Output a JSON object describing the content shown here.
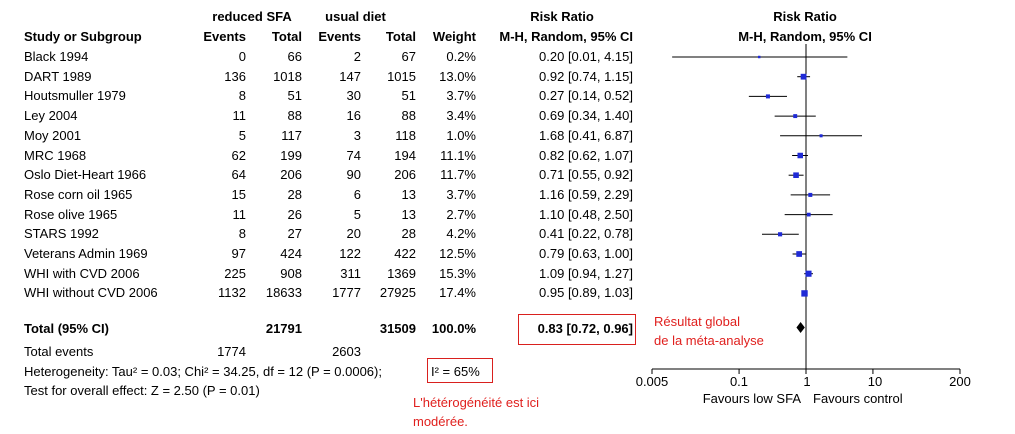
{
  "header": {
    "group1": "reduced SFA",
    "group2": "usual diet",
    "rr_title": "Risk Ratio",
    "plot_title": "Risk Ratio",
    "col_study": "Study or Subgroup",
    "col_events1": "Events",
    "col_total1": "Total",
    "col_events2": "Events",
    "col_total2": "Total",
    "col_weight": "Weight",
    "col_rr": "M-H, Random, 95% CI",
    "col_plot": "M-H, Random, 95% CI"
  },
  "studies": [
    {
      "name": "Black 1994",
      "e1": "0",
      "t1": "66",
      "e2": "2",
      "t2": "67",
      "weight": "0.2%",
      "ci_text": "0.20 [0.01, 4.15]"
    },
    {
      "name": "DART 1989",
      "e1": "136",
      "t1": "1018",
      "e2": "147",
      "t2": "1015",
      "weight": "13.0%",
      "ci_text": "0.92 [0.74, 1.15]"
    },
    {
      "name": "Houtsmuller 1979",
      "e1": "8",
      "t1": "51",
      "e2": "30",
      "t2": "51",
      "weight": "3.7%",
      "ci_text": "0.27 [0.14, 0.52]"
    },
    {
      "name": "Ley 2004",
      "e1": "11",
      "t1": "88",
      "e2": "16",
      "t2": "88",
      "weight": "3.4%",
      "ci_text": "0.69 [0.34, 1.40]"
    },
    {
      "name": "Moy 2001",
      "e1": "5",
      "t1": "117",
      "e2": "3",
      "t2": "118",
      "weight": "1.0%",
      "ci_text": "1.68 [0.41, 6.87]"
    },
    {
      "name": "MRC 1968",
      "e1": "62",
      "t1": "199",
      "e2": "74",
      "t2": "194",
      "weight": "11.1%",
      "ci_text": "0.82 [0.62, 1.07]"
    },
    {
      "name": "Oslo Diet-Heart 1966",
      "e1": "64",
      "t1": "206",
      "e2": "90",
      "t2": "206",
      "weight": "11.7%",
      "ci_text": "0.71 [0.55, 0.92]"
    },
    {
      "name": "Rose corn oil 1965",
      "e1": "15",
      "t1": "28",
      "e2": "6",
      "t2": "13",
      "weight": "3.7%",
      "ci_text": "1.16 [0.59, 2.29]"
    },
    {
      "name": "Rose olive 1965",
      "e1": "11",
      "t1": "26",
      "e2": "5",
      "t2": "13",
      "weight": "2.7%",
      "ci_text": "1.10 [0.48, 2.50]"
    },
    {
      "name": "STARS 1992",
      "e1": "8",
      "t1": "27",
      "e2": "20",
      "t2": "28",
      "weight": "4.2%",
      "ci_text": "0.41 [0.22, 0.78]"
    },
    {
      "name": "Veterans Admin 1969",
      "e1": "97",
      "t1": "424",
      "e2": "122",
      "t2": "422",
      "weight": "12.5%",
      "ci_text": "0.79 [0.63, 1.00]"
    },
    {
      "name": "WHI with CVD 2006",
      "e1": "225",
      "t1": "908",
      "e2": "311",
      "t2": "1369",
      "weight": "15.3%",
      "ci_text": "1.09 [0.94, 1.27]"
    },
    {
      "name": "WHI without CVD 2006",
      "e1": "1132",
      "t1": "18633",
      "e2": "1777",
      "t2": "27925",
      "weight": "17.4%",
      "ci_text": "0.95 [0.89, 1.03]"
    }
  ],
  "total": {
    "label": "Total (95% CI)",
    "t1": "21791",
    "t2": "31509",
    "weight": "100.0%",
    "ci_text": "0.83 [0.72, 0.96]"
  },
  "events_row": {
    "label": "Total events",
    "e1": "1774",
    "e2": "2603"
  },
  "heterogeneity": {
    "text": "Heterogeneity: Tau² = 0.03; Chi² = 34.25, df = 12 (P = 0.0006);",
    "i2": "I² = 65%"
  },
  "overall_effect": "Test for overall effect: Z = 2.50 (P = 0.01)",
  "annotations": {
    "global_line1": "Résultat global",
    "global_line2": "de la méta-analyse",
    "hetero_line1": "L'hétérogénéité est ici",
    "hetero_line2": "modérée."
  },
  "axis": {
    "ticks": [
      "0.005",
      "0.1",
      "1",
      "10",
      "200"
    ],
    "favours_left": "Favours low SFA",
    "favours_right": "Favours control"
  },
  "colors": {
    "marker": "#1f2ad6",
    "annotation_red": "#e0201e"
  },
  "chart_data": {
    "type": "scatter",
    "subtype": "forest-plot",
    "title": "Risk Ratio",
    "subtitle": "M-H, Random, 95% CI",
    "xscale": "log",
    "xlim": [
      0.005,
      200
    ],
    "xticks": [
      0.005,
      0.1,
      1,
      10,
      200
    ],
    "reference_line": 1,
    "xlabel_left": "Favours low SFA",
    "xlabel_right": "Favours control",
    "points": [
      {
        "study": "Black 1994",
        "rr": 0.2,
        "lo": 0.01,
        "hi": 4.15,
        "weight": 0.2
      },
      {
        "study": "DART 1989",
        "rr": 0.92,
        "lo": 0.74,
        "hi": 1.15,
        "weight": 13.0
      },
      {
        "study": "Houtsmuller 1979",
        "rr": 0.27,
        "lo": 0.14,
        "hi": 0.52,
        "weight": 3.7
      },
      {
        "study": "Ley 2004",
        "rr": 0.69,
        "lo": 0.34,
        "hi": 1.4,
        "weight": 3.4
      },
      {
        "study": "Moy 2001",
        "rr": 1.68,
        "lo": 0.41,
        "hi": 6.87,
        "weight": 1.0
      },
      {
        "study": "MRC 1968",
        "rr": 0.82,
        "lo": 0.62,
        "hi": 1.07,
        "weight": 11.1
      },
      {
        "study": "Oslo Diet-Heart 1966",
        "rr": 0.71,
        "lo": 0.55,
        "hi": 0.92,
        "weight": 11.7
      },
      {
        "study": "Rose corn oil 1965",
        "rr": 1.16,
        "lo": 0.59,
        "hi": 2.29,
        "weight": 3.7
      },
      {
        "study": "Rose olive 1965",
        "rr": 1.1,
        "lo": 0.48,
        "hi": 2.5,
        "weight": 2.7
      },
      {
        "study": "STARS 1992",
        "rr": 0.41,
        "lo": 0.22,
        "hi": 0.78,
        "weight": 4.2
      },
      {
        "study": "Veterans Admin 1969",
        "rr": 0.79,
        "lo": 0.63,
        "hi": 1.0,
        "weight": 12.5
      },
      {
        "study": "WHI with CVD 2006",
        "rr": 1.09,
        "lo": 0.94,
        "hi": 1.27,
        "weight": 15.3
      },
      {
        "study": "WHI without CVD 2006",
        "rr": 0.95,
        "lo": 0.89,
        "hi": 1.03,
        "weight": 17.4
      }
    ],
    "overall": {
      "rr": 0.83,
      "lo": 0.72,
      "hi": 0.96
    }
  }
}
